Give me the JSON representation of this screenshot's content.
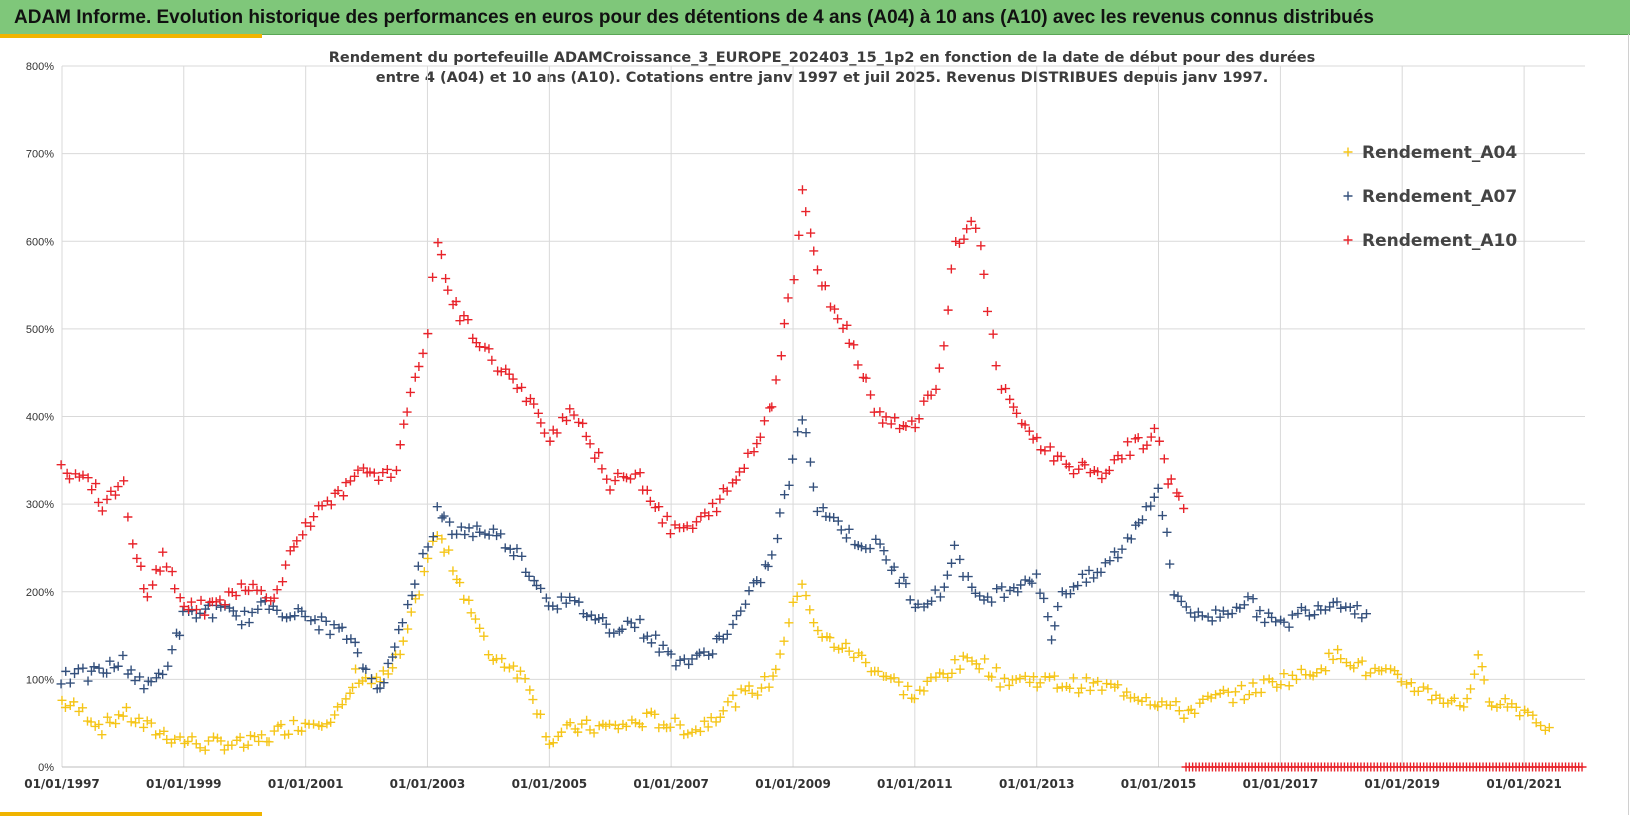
{
  "header": {
    "banner_title": "ADAM Informe. Evolution historique des performances en euros pour des détentions de 4 ans (A04) à 10 ans (A10) avec les revenus connus distribués"
  },
  "colors": {
    "banner_bg": "#7fc77a",
    "accent": "#f0b400",
    "A04": "#f5c518",
    "A07": "#34507c",
    "A10": "#e8232a",
    "grid": "#d9d9d9"
  },
  "chart_data": {
    "type": "scatter",
    "marker": "plus",
    "title_lines": [
      "Rendement du portefeuille ADAMCroissance_3_EUROPE_202403_15_1p2  en fonction de la date de début pour des durées",
      "entre 4 (A04) et 10 ans (A10). Cotations  entre janv 1997 et juil 2025. Revenus DISTRIBUES depuis janv 1997."
    ],
    "xlabel": "",
    "ylabel": "",
    "x_range": [
      "1997-01-01",
      "2022-01-01"
    ],
    "ylim": [
      0,
      800
    ],
    "y_ticks": [
      "0%",
      "100%",
      "200%",
      "300%",
      "400%",
      "500%",
      "600%",
      "700%",
      "800%"
    ],
    "x_ticks": [
      "01/01/1997",
      "01/01/1999",
      "01/01/2001",
      "01/01/2003",
      "01/01/2005",
      "01/01/2007",
      "01/01/2009",
      "01/01/2011",
      "01/01/2013",
      "01/01/2015",
      "01/01/2017",
      "01/01/2019",
      "01/01/2021"
    ],
    "grid": true,
    "legend_position": "top-right",
    "series": [
      {
        "name": "Rendement_A04",
        "key": "A04",
        "points": [
          [
            "1997-01-01",
            75
          ],
          [
            "1997-06-01",
            60
          ],
          [
            "1997-09-01",
            45
          ],
          [
            "1998-01-01",
            62
          ],
          [
            "1998-06-01",
            45
          ],
          [
            "1998-09-01",
            38
          ],
          [
            "1999-01-01",
            30
          ],
          [
            "1999-06-01",
            25
          ],
          [
            "1999-09-01",
            28
          ],
          [
            "2000-01-01",
            25
          ],
          [
            "2000-03-01",
            28
          ],
          [
            "2000-06-01",
            35
          ],
          [
            "2000-09-01",
            45
          ],
          [
            "2001-01-01",
            50
          ],
          [
            "2001-06-01",
            58
          ],
          [
            "2001-09-01",
            70
          ],
          [
            "2001-11-01",
            105
          ],
          [
            "2002-01-01",
            100
          ],
          [
            "2002-03-01",
            95
          ],
          [
            "2002-06-01",
            110
          ],
          [
            "2002-09-01",
            150
          ],
          [
            "2003-01-01",
            240
          ],
          [
            "2003-03-01",
            265
          ],
          [
            "2003-06-01",
            230
          ],
          [
            "2003-09-01",
            190
          ],
          [
            "2004-01-01",
            130
          ],
          [
            "2004-06-01",
            115
          ],
          [
            "2004-09-01",
            95
          ],
          [
            "2005-01-01",
            30
          ],
          [
            "2005-06-01",
            45
          ],
          [
            "2006-01-01",
            45
          ],
          [
            "2006-06-01",
            50
          ],
          [
            "2006-09-01",
            55
          ],
          [
            "2007-01-01",
            48
          ],
          [
            "2007-06-01",
            42
          ],
          [
            "2008-01-01",
            75
          ],
          [
            "2008-06-01",
            90
          ],
          [
            "2008-09-01",
            100
          ],
          [
            "2009-01-01",
            180
          ],
          [
            "2009-03-01",
            215
          ],
          [
            "2009-06-01",
            150
          ],
          [
            "2010-01-01",
            130
          ],
          [
            "2010-06-01",
            110
          ],
          [
            "2011-01-01",
            80
          ],
          [
            "2011-06-01",
            105
          ],
          [
            "2012-01-01",
            125
          ],
          [
            "2012-06-01",
            100
          ],
          [
            "2013-01-01",
            100
          ],
          [
            "2013-06-01",
            95
          ],
          [
            "2014-01-01",
            92
          ],
          [
            "2014-06-01",
            88
          ],
          [
            "2015-01-01",
            75
          ],
          [
            "2015-06-01",
            62
          ],
          [
            "2016-01-01",
            80
          ],
          [
            "2016-06-01",
            85
          ],
          [
            "2017-01-01",
            100
          ],
          [
            "2017-06-01",
            105
          ],
          [
            "2018-01-01",
            130
          ],
          [
            "2018-06-01",
            110
          ],
          [
            "2019-01-01",
            100
          ],
          [
            "2019-06-01",
            85
          ],
          [
            "2020-01-01",
            70
          ],
          [
            "2020-04-01",
            120
          ],
          [
            "2020-06-01",
            80
          ],
          [
            "2021-01-01",
            65
          ],
          [
            "2021-06-01",
            45
          ]
        ]
      },
      {
        "name": "Rendement_A07",
        "key": "A07",
        "points": [
          [
            "1997-01-01",
            100
          ],
          [
            "1997-06-01",
            105
          ],
          [
            "1997-09-01",
            110
          ],
          [
            "1998-01-01",
            120
          ],
          [
            "1998-06-01",
            90
          ],
          [
            "1998-09-01",
            110
          ],
          [
            "1999-01-01",
            170
          ],
          [
            "1999-06-01",
            180
          ],
          [
            "2000-01-01",
            170
          ],
          [
            "2000-06-01",
            185
          ],
          [
            "2001-01-01",
            170
          ],
          [
            "2001-06-01",
            160
          ],
          [
            "2001-09-01",
            150
          ],
          [
            "2002-01-01",
            110
          ],
          [
            "2002-03-01",
            90
          ],
          [
            "2002-06-01",
            120
          ],
          [
            "2002-09-01",
            190
          ],
          [
            "2003-01-01",
            250
          ],
          [
            "2003-03-01",
            290
          ],
          [
            "2003-06-01",
            270
          ],
          [
            "2004-01-01",
            270
          ],
          [
            "2004-06-01",
            250
          ],
          [
            "2005-01-01",
            190
          ],
          [
            "2005-06-01",
            185
          ],
          [
            "2006-01-01",
            160
          ],
          [
            "2006-06-01",
            165
          ],
          [
            "2007-01-01",
            125
          ],
          [
            "2007-06-01",
            120
          ],
          [
            "2008-01-01",
            160
          ],
          [
            "2008-06-01",
            210
          ],
          [
            "2008-09-01",
            240
          ],
          [
            "2009-01-01",
            350
          ],
          [
            "2009-03-01",
            400
          ],
          [
            "2009-06-01",
            300
          ],
          [
            "2010-01-01",
            260
          ],
          [
            "2010-06-01",
            250
          ],
          [
            "2011-01-01",
            190
          ],
          [
            "2011-06-01",
            195
          ],
          [
            "2011-09-01",
            250
          ],
          [
            "2012-01-01",
            190
          ],
          [
            "2012-06-01",
            200
          ],
          [
            "2013-01-01",
            220
          ],
          [
            "2013-04-01",
            150
          ],
          [
            "2013-06-01",
            200
          ],
          [
            "2014-01-01",
            220
          ],
          [
            "2014-06-01",
            250
          ],
          [
            "2015-01-01",
            320
          ],
          [
            "2015-04-01",
            200
          ],
          [
            "2015-09-01",
            170
          ],
          [
            "2016-01-01",
            175
          ],
          [
            "2016-06-01",
            190
          ],
          [
            "2017-01-01",
            160
          ],
          [
            "2017-06-01",
            180
          ],
          [
            "2018-01-01",
            190
          ],
          [
            "2018-06-01",
            175
          ]
        ]
      },
      {
        "name": "Rendement_A10",
        "key": "A10",
        "points": [
          [
            "1997-01-01",
            340
          ],
          [
            "1997-06-01",
            330
          ],
          [
            "1997-09-01",
            300
          ],
          [
            "1998-01-01",
            320
          ],
          [
            "1998-03-01",
            250
          ],
          [
            "1998-06-01",
            200
          ],
          [
            "1998-09-01",
            240
          ],
          [
            "1999-01-01",
            185
          ],
          [
            "1999-06-01",
            180
          ],
          [
            "2000-01-01",
            210
          ],
          [
            "2000-06-01",
            190
          ],
          [
            "2001-01-01",
            280
          ],
          [
            "2001-06-01",
            300
          ],
          [
            "2002-01-01",
            340
          ],
          [
            "2002-06-01",
            330
          ],
          [
            "2002-09-01",
            400
          ],
          [
            "2003-01-01",
            500
          ],
          [
            "2003-03-01",
            600
          ],
          [
            "2003-06-01",
            530
          ],
          [
            "2004-01-01",
            470
          ],
          [
            "2004-06-01",
            440
          ],
          [
            "2005-01-01",
            380
          ],
          [
            "2005-06-01",
            410
          ],
          [
            "2006-01-01",
            320
          ],
          [
            "2006-06-01",
            340
          ],
          [
            "2007-01-01",
            270
          ],
          [
            "2007-06-01",
            275
          ],
          [
            "2008-01-01",
            320
          ],
          [
            "2008-06-01",
            370
          ],
          [
            "2008-09-01",
            420
          ],
          [
            "2009-01-01",
            560
          ],
          [
            "2009-03-01",
            660
          ],
          [
            "2009-06-01",
            560
          ],
          [
            "2010-01-01",
            480
          ],
          [
            "2010-06-01",
            400
          ],
          [
            "2011-01-01",
            390
          ],
          [
            "2011-06-01",
            450
          ],
          [
            "2011-09-01",
            600
          ],
          [
            "2012-01-01",
            620
          ],
          [
            "2012-06-01",
            430
          ],
          [
            "2013-01-01",
            370
          ],
          [
            "2013-06-01",
            350
          ],
          [
            "2014-01-01",
            330
          ],
          [
            "2014-06-01",
            360
          ],
          [
            "2015-01-01",
            380
          ],
          [
            "2015-03-01",
            330
          ],
          [
            "2015-06-01",
            295
          ]
        ]
      }
    ]
  },
  "legend": {
    "items": [
      "Rendement_A04",
      "Rendement_A07",
      "Rendement_A10"
    ]
  }
}
